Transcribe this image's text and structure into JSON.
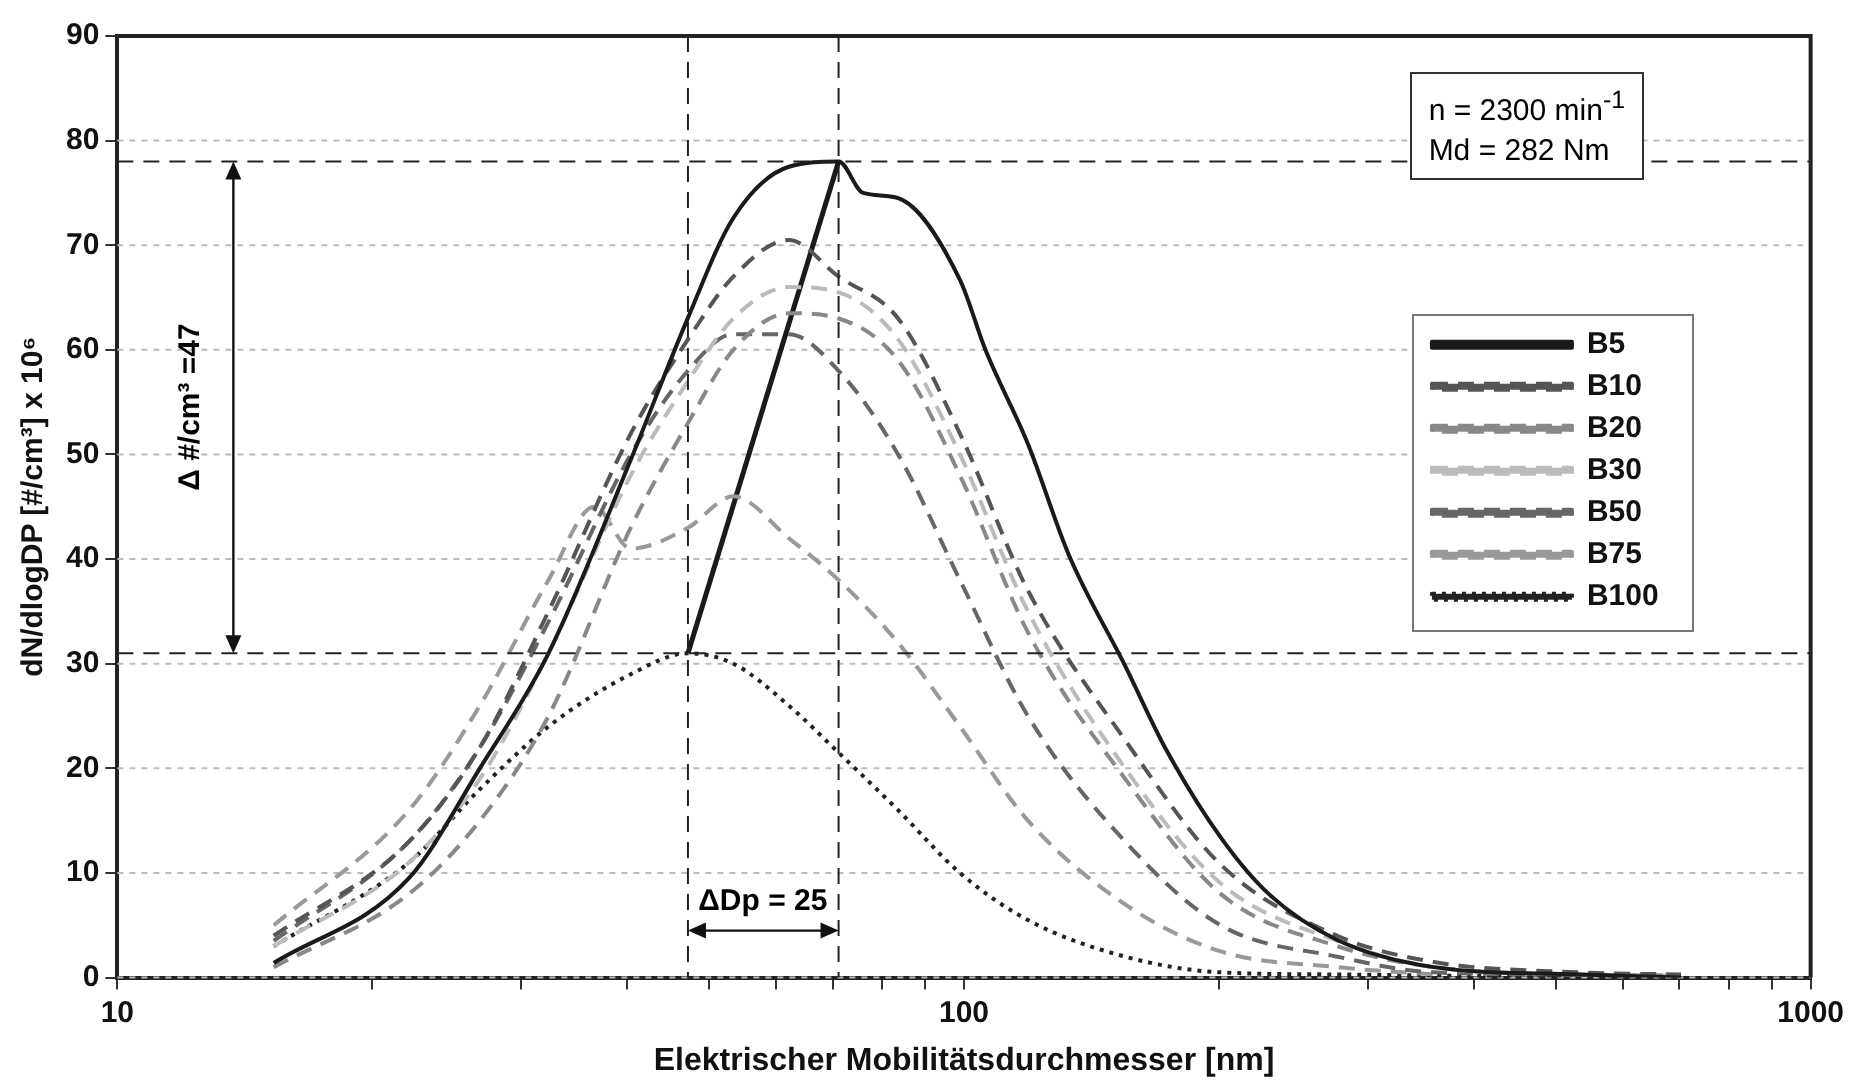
{
  "chart_data": {
    "type": "line",
    "xlabel": "Elektrischer Mobilitätsdurchmesser [nm]",
    "ylabel": "dN/dlogDP [#/cm³] x 10⁶",
    "log": "x",
    "xlim": [
      10,
      1000
    ],
    "xticks": [
      10,
      {
        "value": 20,
        "label": null
      },
      {
        "value": 30,
        "label": null
      },
      {
        "value": 40,
        "label": null
      },
      {
        "value": 50,
        "label": null
      },
      {
        "value": 60,
        "label": null
      },
      {
        "value": 70,
        "label": null
      },
      {
        "value": 80,
        "label": null
      },
      {
        "value": 90,
        "label": null
      },
      100,
      {
        "value": 200,
        "label": null
      },
      {
        "value": 300,
        "label": null
      },
      {
        "value": 400,
        "label": null
      },
      {
        "value": 500,
        "label": null
      },
      {
        "value": 600,
        "label": null
      },
      {
        "value": 700,
        "label": null
      },
      {
        "value": 800,
        "label": null
      },
      {
        "value": 900,
        "label": null
      },
      1000
    ],
    "ylim": [
      0,
      90
    ],
    "yticks": [
      0,
      10,
      20,
      30,
      40,
      50,
      60,
      70,
      80,
      90
    ],
    "grid": "y",
    "legend": "right",
    "marker": "none",
    "x": [
      15.3,
      22.1,
      26.8,
      32.3,
      40.4,
      47.2,
      53.4,
      62.1,
      71.1,
      83.6,
      98.9,
      119,
      155,
      201,
      276,
      359,
      531,
      703
    ],
    "series": [
      {
        "name": "B5",
        "color": "#1a1a1a",
        "line_style": "solid",
        "x": [
          15.3,
          22.1,
          26.8,
          32.3,
          40.4,
          47,
          53.4,
          62.1,
          71.1,
          76,
          83.6,
          98.9,
          106,
          119,
          133,
          155,
          173,
          201,
          229,
          276,
          359,
          531,
          703
        ],
        "values": [
          1.4,
          9.5,
          20,
          31,
          49.5,
          62.7,
          72.6,
          77.5,
          78,
          75,
          74.5,
          66.7,
          60,
          51,
          40.4,
          29.8,
          21.9,
          13.4,
          8,
          3.6,
          1,
          0.3,
          0
        ]
      },
      {
        "name": "B10",
        "color": "#555555",
        "line_style": "dashed",
        "values": [
          4,
          13,
          22,
          35,
          52,
          61,
          67,
          70.5,
          67,
          63,
          52,
          37,
          22.7,
          10.8,
          4,
          1.5,
          0.5,
          0.3
        ]
      },
      {
        "name": "B20",
        "color": "#888888",
        "line_style": "dashed",
        "values": [
          1,
          8,
          15,
          25,
          43,
          53,
          60,
          63.5,
          63,
          59,
          48,
          33,
          19,
          8,
          3,
          1,
          0.3,
          0.2
        ]
      },
      {
        "name": "B30",
        "color": "#bbbbbb",
        "line_style": "dashed",
        "values": [
          3,
          11,
          19,
          31,
          48,
          57,
          63,
          66,
          65.5,
          61,
          50,
          35,
          20,
          9,
          3.5,
          1,
          0.3,
          0.2
        ]
      },
      {
        "name": "B50",
        "color": "#666666",
        "line_style": "dashed",
        "values": [
          3.5,
          13,
          22,
          34,
          50,
          58,
          61.5,
          61.5,
          58,
          50,
          38,
          25,
          13,
          5,
          2,
          0.5,
          0.3,
          0.2
        ]
      },
      {
        "name": "B75",
        "color": "#999999",
        "line_style": "dashed",
        "x": [
          15.3,
          22.1,
          26.8,
          32.3,
          36.6,
          40.4,
          47.2,
          53.4,
          62.1,
          71.1,
          83.6,
          98.9,
          119,
          155,
          201,
          276,
          359
        ],
        "values": [
          5,
          16,
          26,
          38,
          45,
          41,
          43,
          46,
          42,
          38,
          32,
          24,
          15,
          7,
          2.5,
          1,
          0.3
        ]
      },
      {
        "name": "B100",
        "color": "#222222",
        "line_style": "dotted",
        "values": [
          3,
          11,
          18,
          24,
          29,
          31,
          30,
          26,
          21.5,
          16,
          10,
          5.5,
          2,
          0.5,
          0.3,
          0.2,
          0.1,
          0.1
        ]
      },
      {
        "color": "#1a1a1a",
        "line_style": "solid",
        "x": [
          47.2,
          71.1
        ],
        "values": [
          31,
          78
        ]
      }
    ],
    "ref_lines": [
      {
        "axis": "y",
        "value": 78,
        "line_style": "dashed",
        "color": "#222222"
      },
      {
        "axis": "y",
        "value": 31,
        "line_style": "dashed",
        "color": "#222222"
      },
      {
        "axis": "x",
        "value": 71.1,
        "line_style": "dashed",
        "color": "#222222"
      },
      {
        "axis": "x",
        "value": 47.2,
        "line_style": "dashed",
        "color": "#222222"
      }
    ],
    "annotations": [
      "Δ #/cm³ =47",
      "ΔDp = 25",
      "n = 2300 min$^{-1}$",
      "Md = 282 Nm"
    ]
  }
}
